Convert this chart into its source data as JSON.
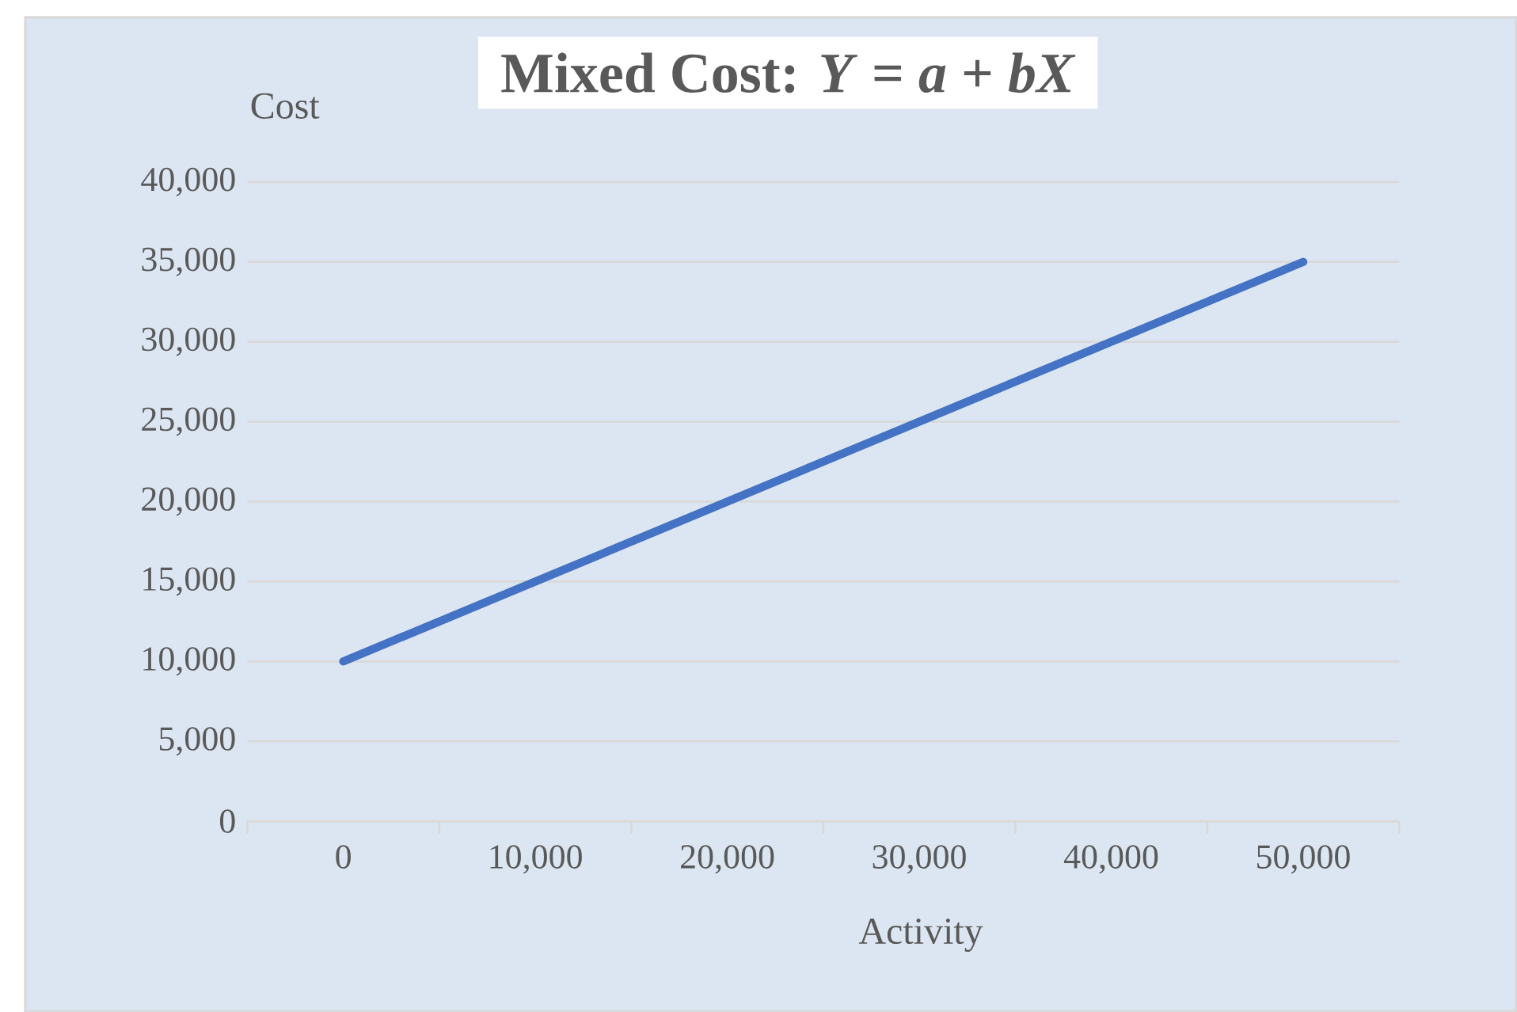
{
  "chart_data": {
    "type": "line",
    "title": "Mixed Cost: *Y* = *a* + *bX*",
    "xlabel": "Activity",
    "ylabel": "Cost",
    "x": [
      0,
      50000
    ],
    "series": [
      {
        "color": "#4472c4",
        "values": [
          10000,
          35000
        ]
      }
    ],
    "xlim": [
      -5000,
      55000
    ],
    "xticks": [
      {
        "value": -5000,
        "label": null
      },
      {
        "value": 0,
        "label": "0"
      },
      {
        "value": 5000,
        "label": null
      },
      {
        "value": 10000,
        "label": "10,000"
      },
      {
        "value": 15000,
        "label": null
      },
      {
        "value": 20000,
        "label": "20,000"
      },
      {
        "value": 25000,
        "label": null
      },
      {
        "value": 30000,
        "label": "30,000"
      },
      {
        "value": 35000,
        "label": null
      },
      {
        "value": 40000,
        "label": "40,000"
      },
      {
        "value": 45000,
        "label": null
      },
      {
        "value": 50000,
        "label": "50,000"
      },
      {
        "value": 55000,
        "label": null
      }
    ],
    "ylim": [
      0,
      40000
    ],
    "yticks": [
      {
        "value": 0,
        "label": "0"
      },
      {
        "value": 5000,
        "label": "5,000"
      },
      {
        "value": 10000,
        "label": "10,000"
      },
      {
        "value": 15000,
        "label": "15,000"
      },
      {
        "value": 20000,
        "label": "20,000"
      },
      {
        "value": 25000,
        "label": "25,000"
      },
      {
        "value": 30000,
        "label": "30,000"
      },
      {
        "value": 35000,
        "label": "35,000"
      },
      {
        "value": 40000,
        "label": "40,000"
      }
    ],
    "grid": "y",
    "marker": "none",
    "line_style": "solid"
  }
}
